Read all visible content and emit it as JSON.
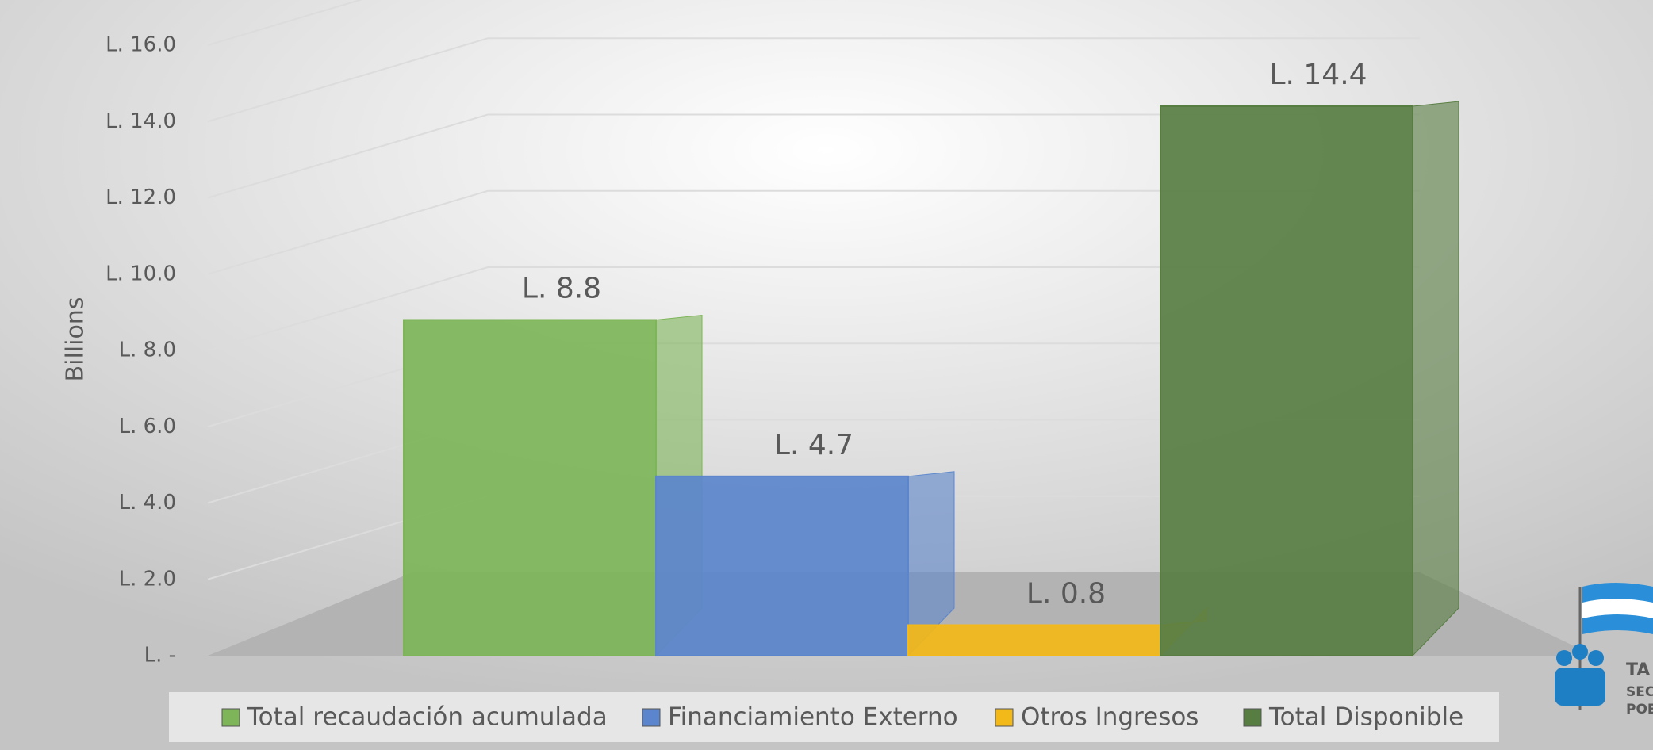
{
  "chart_data": {
    "type": "bar",
    "y_label": "Billions",
    "categories": [
      "Total recaudación acumulada",
      "Financiamiento Externo",
      "Otros Ingresos",
      "Total Disponible"
    ],
    "values": [
      8.8,
      4.7,
      0.8,
      14.4
    ],
    "value_labels": [
      "L. 8.8",
      "L. 4.7",
      "L. 0.8",
      "L. 14.4"
    ],
    "colors": [
      "#7db558",
      "#5b85cc",
      "#f3b918",
      "#587d42"
    ],
    "ylim": [
      0,
      16
    ],
    "yticks": [
      {
        "value": 0,
        "label": "L. -"
      },
      {
        "value": 2,
        "label": "L. 2.0"
      },
      {
        "value": 4,
        "label": "L. 4.0"
      },
      {
        "value": 6,
        "label": "L. 6.0"
      },
      {
        "value": 8,
        "label": "L. 8.0"
      },
      {
        "value": 10,
        "label": "L. 10.0"
      },
      {
        "value": 12,
        "label": "L. 12.0"
      },
      {
        "value": 14,
        "label": "L. 14.0"
      },
      {
        "value": 16,
        "label": "L. 16.0"
      }
    ],
    "grid": true,
    "legend": "bottom"
  },
  "logo": [
    "TA",
    "SEC",
    "POE"
  ]
}
